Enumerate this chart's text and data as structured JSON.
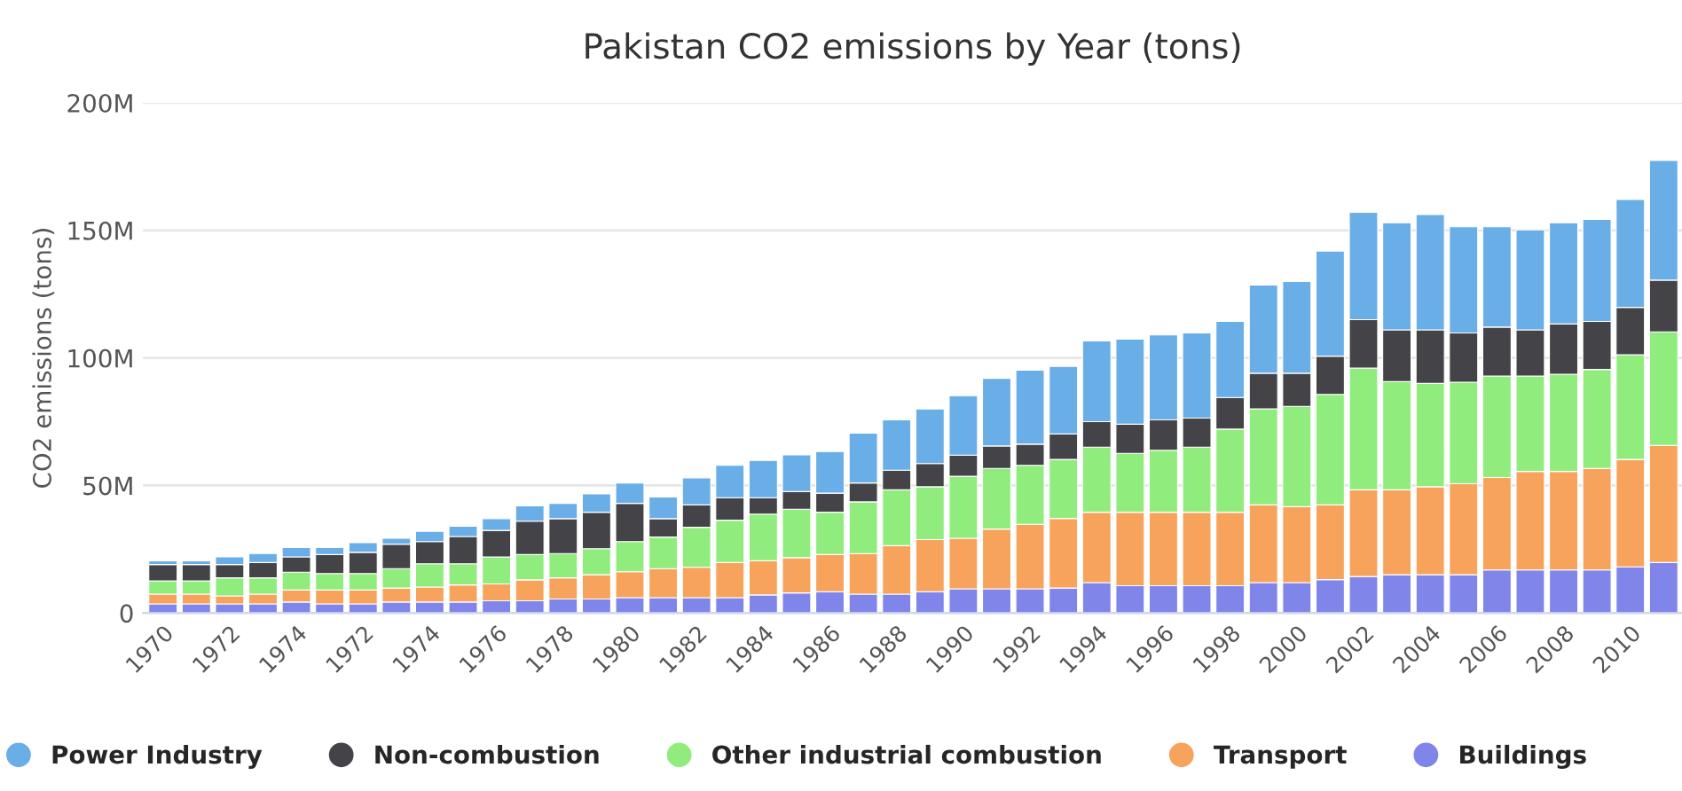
{
  "chart_data": {
    "type": "bar",
    "title": "Pakistan CO2 emissions by Year (tons)",
    "ylabel": "CO2 emissions (tons)",
    "categories": [
      "1970",
      null,
      "1972",
      null,
      "1974",
      null,
      "1972",
      null,
      "1974",
      null,
      "1976",
      null,
      "1978",
      null,
      "1980",
      null,
      "1982",
      null,
      "1984",
      null,
      "1986",
      null,
      "1988",
      null,
      "1990",
      null,
      "1992",
      null,
      "1994",
      null,
      "1996",
      null,
      "1998",
      null,
      "2000",
      null,
      "2002",
      null,
      "2004",
      null,
      "2006",
      null,
      "2008",
      null,
      "2010",
      null
    ],
    "stacked": true,
    "series": [
      {
        "name": "Buildings",
        "color": "#8085e9",
        "values": [
          3600000.0,
          3600000.0,
          3600000.0,
          3600000.0,
          4300000.0,
          3600000.0,
          3600000.0,
          4300000.0,
          4300000.0,
          4300000.0,
          4800000.0,
          4800000.0,
          5500000.0,
          5500000.0,
          6000000.0,
          6000000.0,
          6000000.0,
          6000000.0,
          7100000.0,
          7900000.0,
          8300000.0,
          7400000.0,
          7400000.0,
          8300000.0,
          9500000.0,
          9500000.0,
          9500000.0,
          9800000.0,
          11900000.0,
          10700000.0,
          10700000.0,
          10700000.0,
          10700000.0,
          11900000.0,
          11900000.0,
          13100000.0,
          14300000.0,
          15000000.0,
          15000000.0,
          15000000.0,
          16900000.0,
          16900000.0,
          16900000.0,
          16900000.0,
          18100000.0,
          19800000.0
        ]
      },
      {
        "name": "Transport",
        "color": "#f7a35c",
        "values": [
          3800000.0,
          3800000.0,
          3100000.0,
          3800000.0,
          4700000.0,
          5400000.0,
          5400000.0,
          5500000.0,
          5900000.0,
          6700000.0,
          6600000.0,
          8200000.0,
          8300000.0,
          9500000.0,
          10200000.0,
          11400000.0,
          11900000.0,
          13800000.0,
          13400000.0,
          13800000.0,
          14600000.0,
          15900000.0,
          19000000.0,
          20500000.0,
          19800000.0,
          23400000.0,
          25300000.0,
          27300000.0,
          27600000.0,
          28800000.0,
          28800000.0,
          28800000.0,
          28800000.0,
          30500000.0,
          29800000.0,
          29300000.0,
          34000000.0,
          33300000.0,
          34500000.0,
          35700000.0,
          36200000.0,
          38600000.0,
          38600000.0,
          39800000.0,
          42100000.0,
          45900000.0
        ]
      },
      {
        "name": "Other industrial combustion",
        "color": "#90ed7d",
        "values": [
          5200000.0,
          5200000.0,
          7100000.0,
          6400000.0,
          7000000.0,
          6500000.0,
          6500000.0,
          7600000.0,
          9100000.0,
          8300000.0,
          10600000.0,
          9900000.0,
          9500000.0,
          10200000.0,
          11800000.0,
          12400000.0,
          15700000.0,
          16600000.0,
          18300000.0,
          19000000.0,
          16600000.0,
          20300000.0,
          21900000.0,
          20700000.0,
          24300000.0,
          23800000.0,
          23100000.0,
          23100000.0,
          25500000.0,
          23100000.0,
          24300000.0,
          25500000.0,
          32600000.0,
          37600000.0,
          39300000.0,
          43300000.0,
          47700000.0,
          42400000.0,
          40500000.0,
          39800000.0,
          39800000.0,
          37400000.0,
          38100000.0,
          38800000.0,
          41000000.0,
          44500000.0
        ]
      },
      {
        "name": "Non-combustion",
        "color": "#434348",
        "values": [
          6400000.0,
          6400000.0,
          5200000.0,
          6000000.0,
          6000000.0,
          7400000.0,
          8300000.0,
          9600000.0,
          8700000.0,
          10700000.0,
          10400000.0,
          13100000.0,
          13700000.0,
          14300000.0,
          15000000.0,
          7200000.0,
          8800000.0,
          8800000.0,
          6400000.0,
          6900000.0,
          7500000.0,
          7400000.0,
          7700000.0,
          9100000.0,
          8300000.0,
          8800000.0,
          8300000.0,
          10000000.0,
          10000000.0,
          11400000.0,
          11900000.0,
          11400000.0,
          12400000.0,
          14000000.0,
          13000000.0,
          15000000.0,
          19000000.0,
          20300000.0,
          21000000.0,
          19300000.0,
          19200000.0,
          18100000.0,
          19700000.0,
          18800000.0,
          18600000.0,
          20300000.0
        ]
      },
      {
        "name": "Power Industry",
        "color": "#6aaee8",
        "values": [
          1500000.0,
          1500000.0,
          3000000.0,
          3500000.0,
          3700000.0,
          2800000.0,
          3800000.0,
          2300000.0,
          4000000.0,
          4000000.0,
          4600000.0,
          6000000.0,
          6000000.0,
          7200000.0,
          8000000.0,
          8500000.0,
          10600000.0,
          12700000.0,
          14600000.0,
          14400000.0,
          16300000.0,
          19500000.0,
          19700000.0,
          21400000.0,
          23300000.0,
          26500000.0,
          29000000.0,
          26500000.0,
          31700000.0,
          33400000.0,
          33300000.0,
          33400000.0,
          29800000.0,
          34600000.0,
          36000000.0,
          41200000.0,
          42100000.0,
          42000000.0,
          45200000.0,
          41600000.0,
          39300000.0,
          39200000.0,
          39700000.0,
          40000000.0,
          42300000.0,
          46900000.0
        ]
      }
    ],
    "ylim": [
      0,
      200000000
    ],
    "yticks": [
      {
        "value": 0,
        "label": "0"
      },
      {
        "value": 50000000,
        "label": "50M"
      },
      {
        "value": 100000000,
        "label": "100M"
      },
      {
        "value": 150000000,
        "label": "150M"
      },
      {
        "value": 200000000,
        "label": "200M"
      }
    ],
    "grid": "y",
    "legend": "bottom"
  }
}
